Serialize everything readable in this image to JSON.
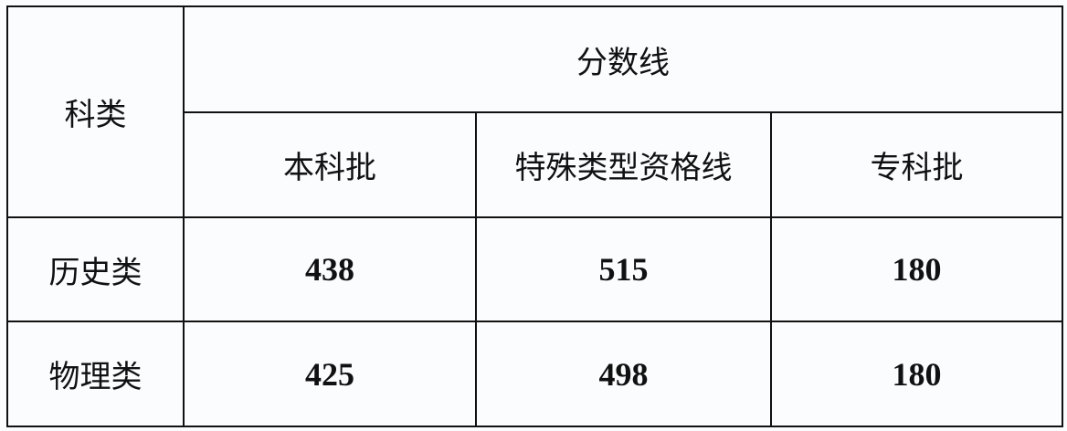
{
  "table": {
    "row_header_label": "科类",
    "group_header": "分数线",
    "columns": [
      "本科批",
      "特殊类型资格线",
      "专科批"
    ],
    "rows": [
      {
        "label": "历史类",
        "values": [
          "438",
          "515",
          "180"
        ]
      },
      {
        "label": "物理类",
        "values": [
          "425",
          "498",
          "180"
        ]
      }
    ]
  }
}
